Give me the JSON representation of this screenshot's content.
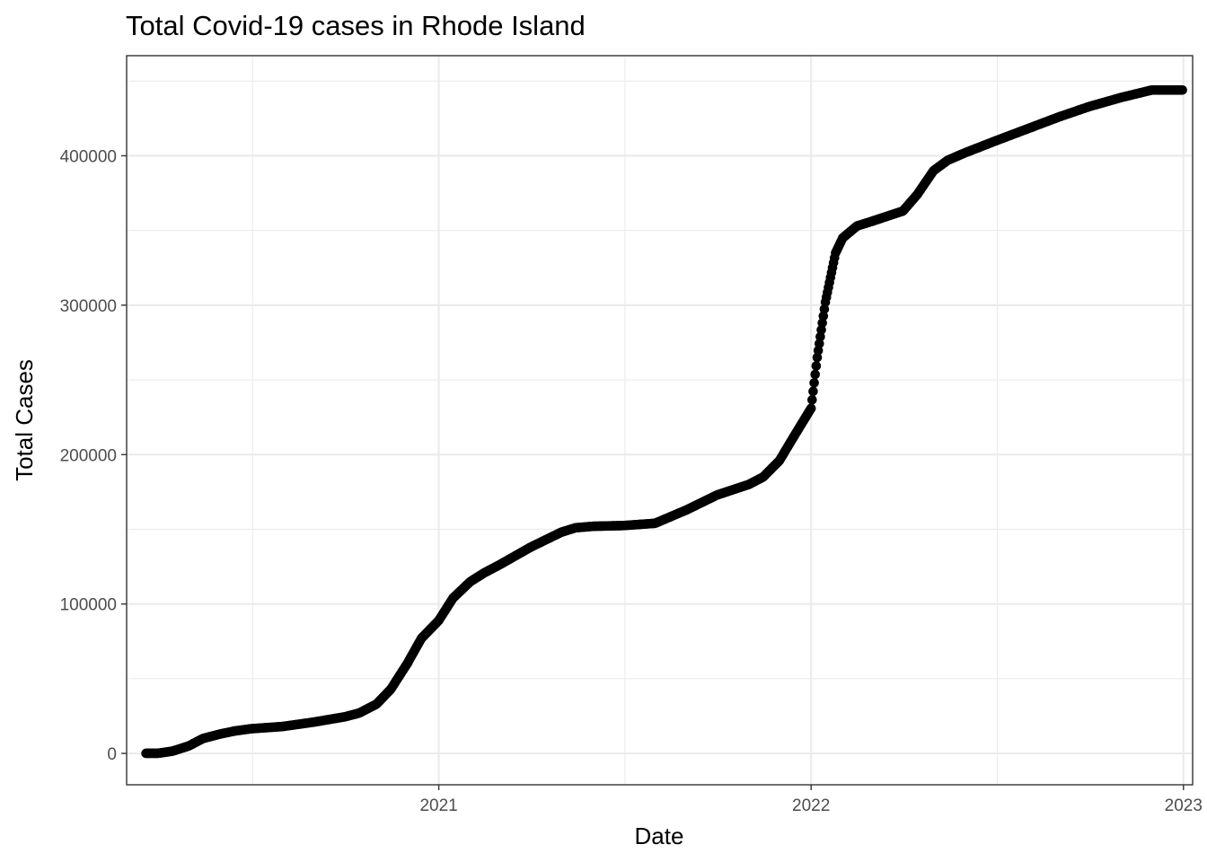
{
  "chart_data": {
    "type": "scatter",
    "title": "Total Covid-19 cases in Rhode Island",
    "xlabel": "Date",
    "ylabel": "Total Cases",
    "xlim": [
      "2020-03-01",
      "2023-01-10"
    ],
    "ylim": [
      -21000,
      467000
    ],
    "x_ticks": [
      "2021-01-01",
      "2022-01-01",
      "2023-01-01"
    ],
    "x_tick_labels": [
      "2021",
      "2022",
      "2023"
    ],
    "y_ticks": [
      0,
      100000,
      200000,
      300000,
      400000
    ],
    "y_tick_labels": [
      "0",
      "100000",
      "200000",
      "300000",
      "400000"
    ],
    "grid": true,
    "legend": "none",
    "point_color": "#000000",
    "series": [
      {
        "x": [
          "2020-03-01",
          "2020-04-01",
          "2020-04-15",
          "2020-05-01",
          "2020-05-15",
          "2020-06-01",
          "2020-06-15",
          "2020-07-01",
          "2020-08-01",
          "2020-09-01",
          "2020-10-01",
          "2020-10-15",
          "2020-11-01",
          "2020-11-15",
          "2020-12-01",
          "2020-12-15",
          "2021-01-01",
          "2021-01-15",
          "2021-02-01",
          "2021-02-15",
          "2021-03-01",
          "2021-04-01",
          "2021-05-01",
          "2021-05-15",
          "2021-06-01",
          "2021-07-01",
          "2021-08-01",
          "2021-09-01",
          "2021-10-01",
          "2021-11-01",
          "2021-11-15",
          "2021-12-01",
          "2021-12-15",
          "2022-01-01",
          "2022-01-07",
          "2022-01-15",
          "2022-01-25",
          "2022-02-01",
          "2022-02-15",
          "2022-03-01",
          "2022-04-01",
          "2022-04-15",
          "2022-05-01",
          "2022-05-15",
          "2022-06-01",
          "2022-07-01",
          "2022-08-01",
          "2022-09-01",
          "2022-10-01",
          "2022-11-01",
          "2022-12-01",
          "2022-12-31"
        ],
        "y": [
          0,
          100,
          1500,
          5000,
          10000,
          13000,
          15000,
          16500,
          18000,
          21000,
          24500,
          27000,
          33000,
          43000,
          60000,
          77000,
          89000,
          104000,
          115000,
          121000,
          126000,
          138000,
          148000,
          151000,
          152000,
          152500,
          154000,
          163000,
          173000,
          180000,
          185000,
          196000,
          212000,
          231000,
          265000,
          302000,
          335000,
          345000,
          353000,
          356000,
          363000,
          374000,
          390000,
          397000,
          402000,
          410000,
          418000,
          426000,
          433000,
          439000,
          444000,
          444000
        ]
      }
    ]
  }
}
